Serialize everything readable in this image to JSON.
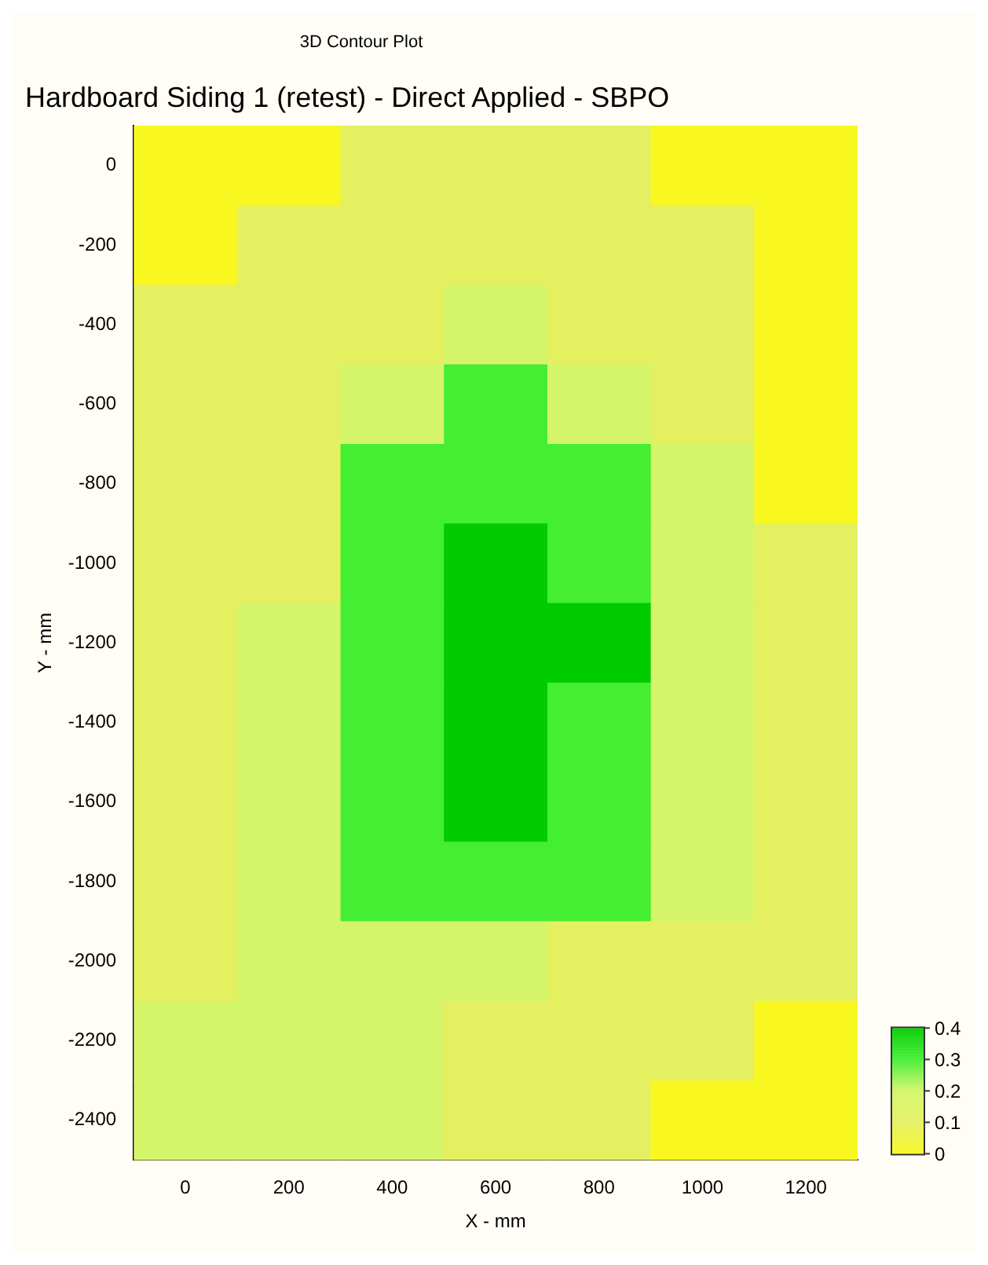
{
  "chart_data": {
    "type": "heatmap",
    "subtitle": "3D Contour Plot",
    "title": "Hardboard Siding 1 (retest) - Direct Applied - SBPO",
    "xlabel": "X - mm",
    "ylabel": "Y - mm",
    "categories": [
      "0",
      "200",
      "400",
      "600",
      "800",
      "1000",
      "1200"
    ],
    "y_categories": [
      "0",
      "-200",
      "-400",
      "-600",
      "-800",
      "-1000",
      "-1200",
      "-1400",
      "-1600",
      "-1800",
      "-2000",
      "-2200",
      "-2400"
    ],
    "cells": [
      [
        0,
        0,
        0.1,
        0.1,
        0.1,
        0,
        0
      ],
      [
        0,
        0.1,
        0.1,
        0.1,
        0.1,
        0.1,
        0
      ],
      [
        0.1,
        0.1,
        0.1,
        0.2,
        0.1,
        0.1,
        0
      ],
      [
        0.1,
        0.1,
        0.2,
        0.3,
        0.2,
        0.1,
        0
      ],
      [
        0.1,
        0.1,
        0.3,
        0.3,
        0.3,
        0.2,
        0
      ],
      [
        0.1,
        0.1,
        0.3,
        0.4,
        0.3,
        0.2,
        0.1
      ],
      [
        0.1,
        0.2,
        0.3,
        0.4,
        0.4,
        0.2,
        0.1
      ],
      [
        0.1,
        0.2,
        0.3,
        0.4,
        0.3,
        0.2,
        0.1
      ],
      [
        0.1,
        0.2,
        0.3,
        0.4,
        0.3,
        0.2,
        0.1
      ],
      [
        0.1,
        0.2,
        0.3,
        0.3,
        0.3,
        0.2,
        0.1
      ],
      [
        0.1,
        0.2,
        0.2,
        0.2,
        0.1,
        0.1,
        0.1
      ],
      [
        0.2,
        0.2,
        0.2,
        0.1,
        0.1,
        0.1,
        0
      ],
      [
        0.2,
        0.2,
        0.2,
        0.1,
        0.1,
        0,
        0
      ]
    ],
    "clim": [
      0,
      0.4
    ],
    "cticks": [
      0,
      0.1,
      0.2,
      0.3,
      0.4
    ],
    "colors": [
      "#f8f820",
      "#e4f060",
      "#d4f56a",
      "#44ee33",
      "#00cc00"
    ]
  }
}
